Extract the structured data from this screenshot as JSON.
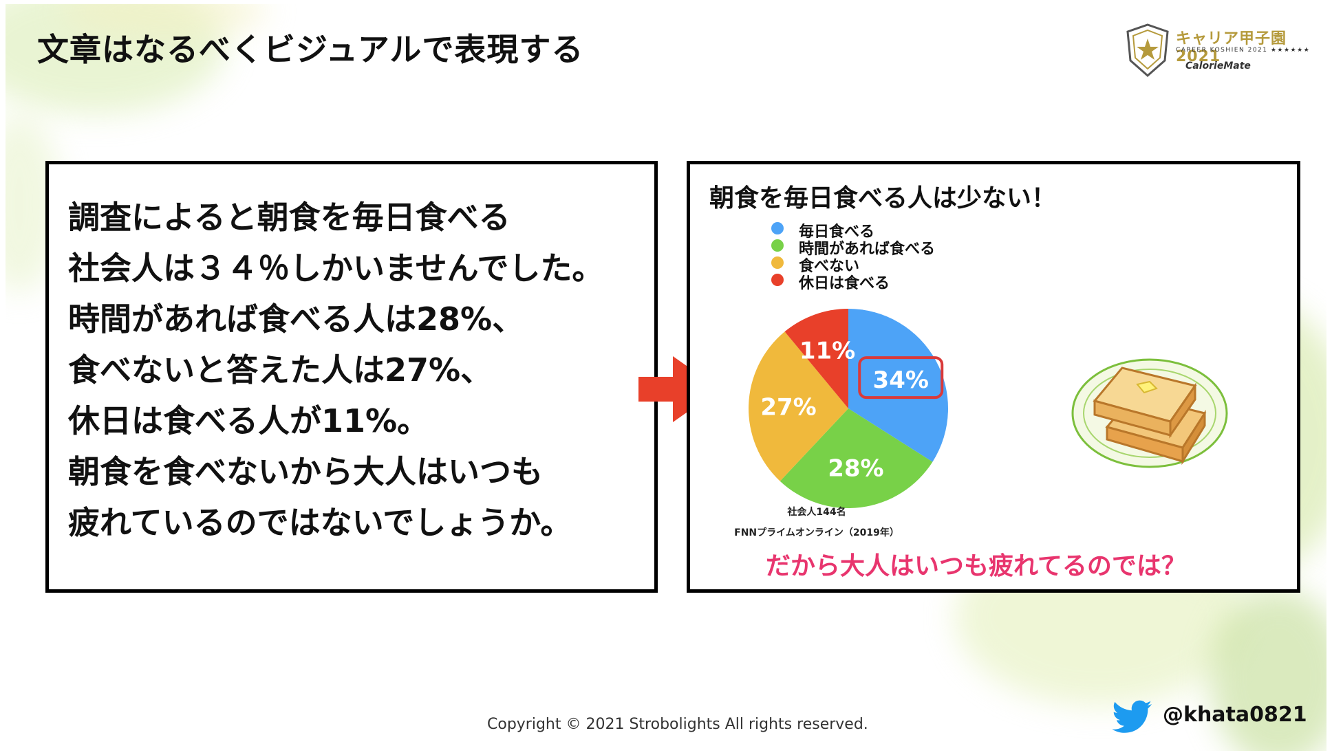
{
  "slide": {
    "title": "文章はなるべくビジュアルで表現する",
    "logo": {
      "title": "キャリア甲子園2021",
      "subtitle": "CAREER KOSHIEN 2021 ★★★★★★",
      "sponsor": "CalorieMate"
    },
    "body_lines": [
      "調査によると朝食を毎日食べる",
      "社会人は３４％しかいませんでした。",
      "時間があれば食べる人は28%、",
      "食べないと答えた人は27%、",
      "休日は食べる人が11%。",
      "朝食を食べないから大人はいつも",
      "疲れているのではないでしょうか。"
    ],
    "copyright": "Copyright © 2021 Strobolights All rights reserved.",
    "handle": "@khata0821",
    "icons": {
      "arrow": "right-arrow-icon",
      "twitter": "twitter-bird-icon",
      "toast": "toast-illustration"
    }
  },
  "chart_data": {
    "type": "pie",
    "title": "朝食を毎日食べる人は少ない！",
    "categories": [
      "毎日食べる",
      "時間があれば食べる",
      "食べない",
      "休日は食べる"
    ],
    "values": [
      34,
      28,
      27,
      11
    ],
    "labels": [
      "34%",
      "28%",
      "27%",
      "11%"
    ],
    "colors": [
      "#4da3f7",
      "#78d148",
      "#f0b93c",
      "#e8402a"
    ],
    "highlight": "34%",
    "highlight_color": "#d93a3a",
    "legend_position": "top-left",
    "notes": [
      "社会人144名",
      "FNNプライムオンライン（2019年）"
    ],
    "tagline": "だから大人はいつも疲れてるのでは？"
  }
}
